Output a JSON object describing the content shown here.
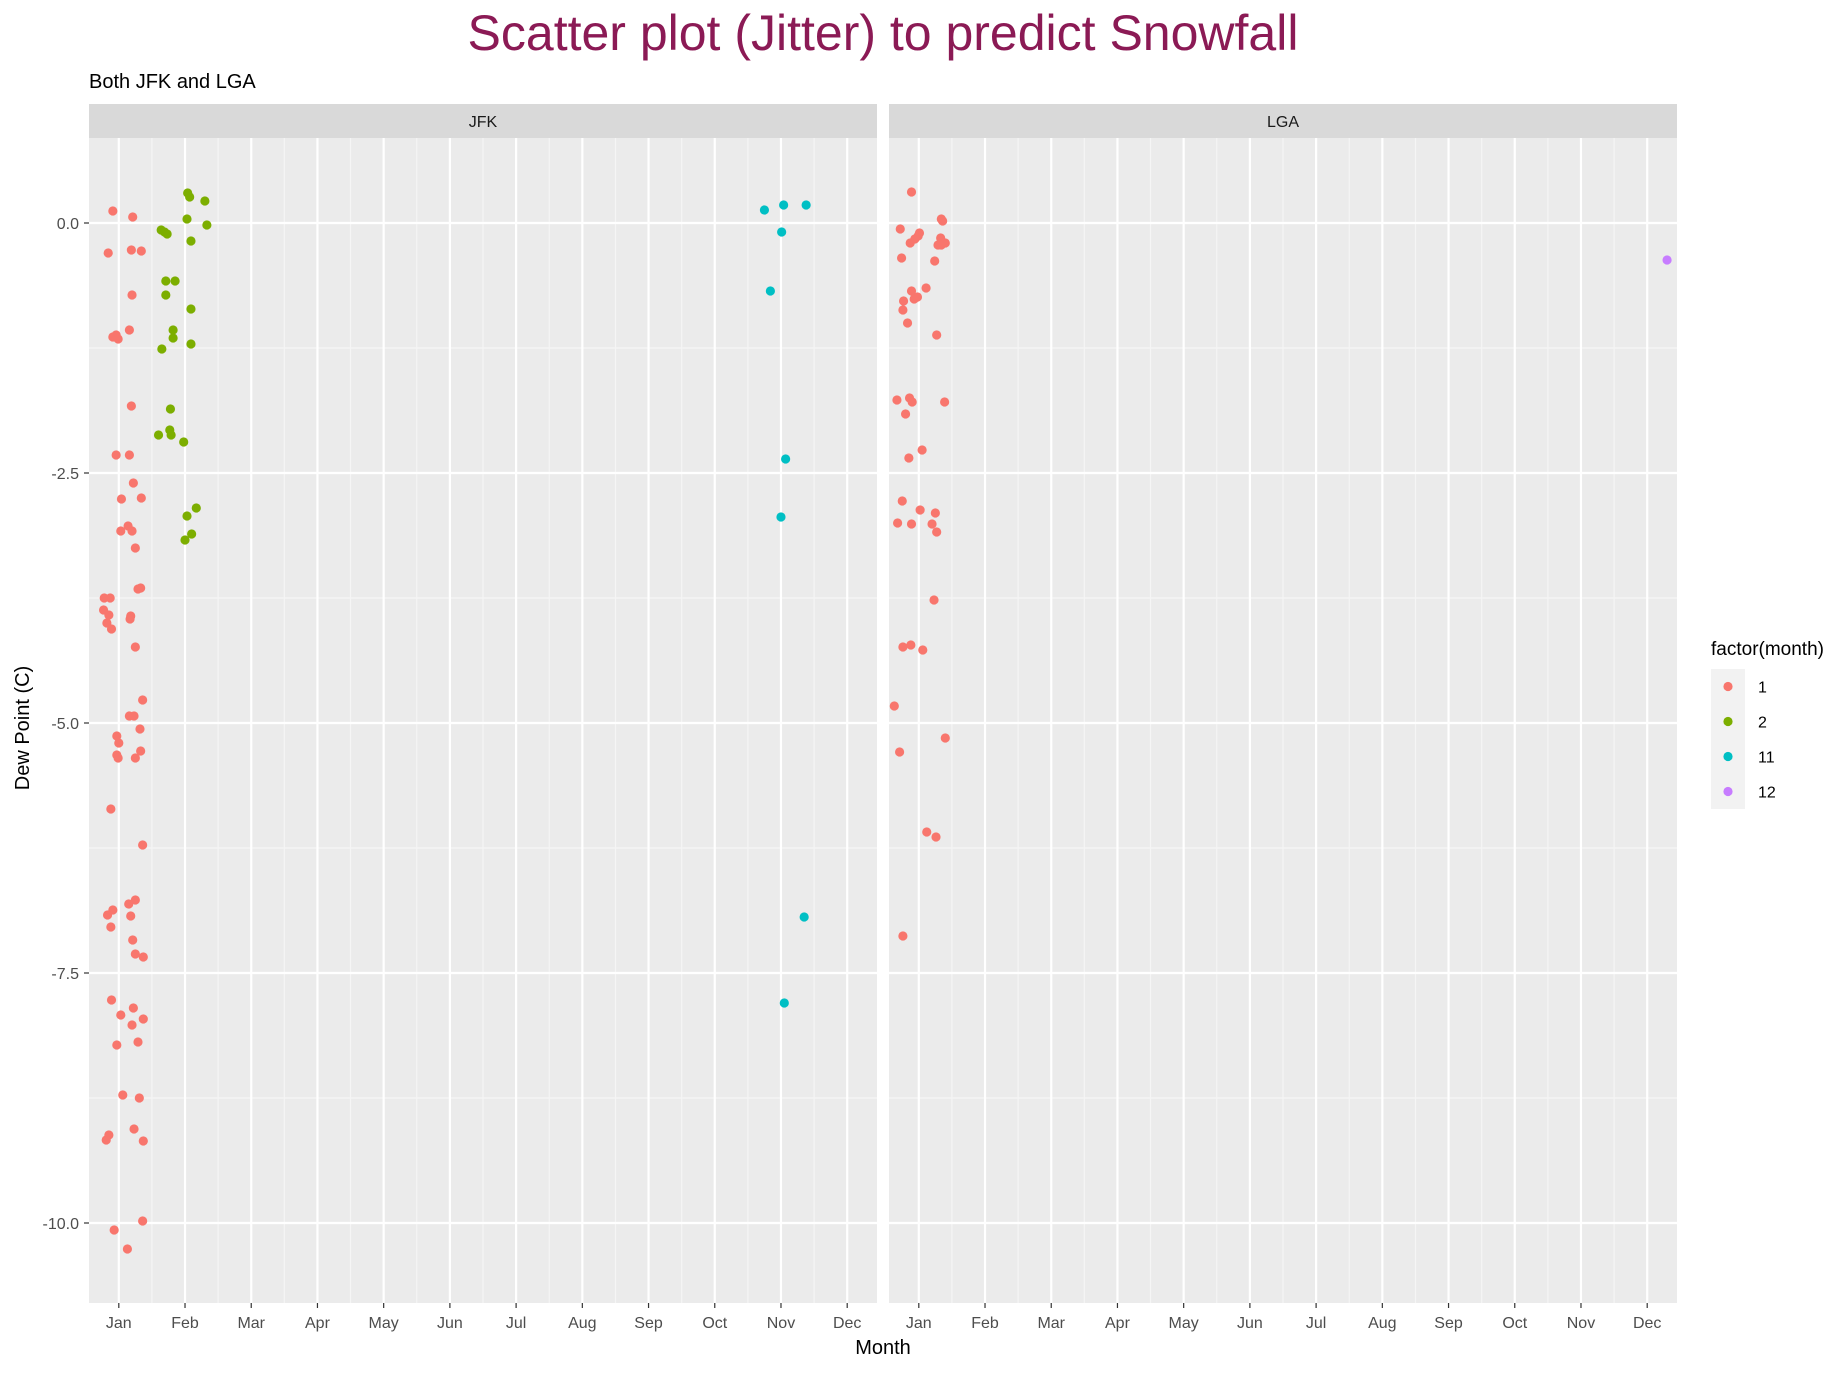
{
  "chart_data": {
    "type": "scatter",
    "title": "Scatter plot (Jitter) to predict Snowfall",
    "subtitle": "Both JFK and LGA",
    "xlabel": "Month",
    "ylabel": "Dew Point (C)",
    "x_ticks": [
      "Jan",
      "Feb",
      "Mar",
      "Apr",
      "May",
      "Jun",
      "Jul",
      "Aug",
      "Sep",
      "Oct",
      "Nov",
      "Dec"
    ],
    "y_ticks": [
      0.0,
      -2.5,
      -5.0,
      -7.5,
      -10.0
    ],
    "y_tick_labels": [
      "0.0",
      "-2.5",
      "-5.0",
      "-7.5",
      "-10.0"
    ],
    "xlim": [
      0.55,
      12.45
    ],
    "ylim": [
      -10.8,
      0.85
    ],
    "grid": true,
    "legend": {
      "title": "factor(month)",
      "placement": "right",
      "entries": [
        {
          "label": "1",
          "color": "#F8766D"
        },
        {
          "label": "2",
          "color": "#7CAE00"
        },
        {
          "label": "11",
          "color": "#00BFC4"
        },
        {
          "label": "12",
          "color": "#C77CFF"
        }
      ]
    },
    "colors": {
      "title": "#8B1A55",
      "panel_bg": "#EBEBEB",
      "strip_bg": "#D9D9D9",
      "grid": "#FFFFFF"
    },
    "panels": [
      {
        "label": "JFK",
        "series": [
          {
            "name": "1",
            "color": "#F8766D",
            "points": [
              [
                0.91,
                0.12
              ],
              [
                1.21,
                0.06
              ],
              [
                0.84,
                -0.3
              ],
              [
                1.19,
                -0.27
              ],
              [
                1.34,
                -0.28
              ],
              [
                1.2,
                -0.72
              ],
              [
                0.91,
                -1.14
              ],
              [
                0.96,
                -1.12
              ],
              [
                0.99,
                -1.16
              ],
              [
                1.16,
                -1.07
              ],
              [
                1.19,
                -1.83
              ],
              [
                0.96,
                -2.32
              ],
              [
                1.16,
                -2.32
              ],
              [
                1.22,
                -2.6
              ],
              [
                1.04,
                -2.76
              ],
              [
                1.34,
                -2.75
              ],
              [
                1.03,
                -3.08
              ],
              [
                1.14,
                -3.03
              ],
              [
                1.2,
                -3.08
              ],
              [
                1.25,
                -3.25
              ],
              [
                1.29,
                -3.66
              ],
              [
                1.33,
                -3.65
              ],
              [
                0.78,
                -3.75
              ],
              [
                0.87,
                -3.75
              ],
              [
                0.77,
                -3.87
              ],
              [
                0.85,
                -3.92
              ],
              [
                0.82,
                -4.0
              ],
              [
                0.89,
                -4.06
              ],
              [
                1.18,
                -3.93
              ],
              [
                1.17,
                -3.96
              ],
              [
                1.25,
                -4.24
              ],
              [
                1.36,
                -4.77
              ],
              [
                1.16,
                -4.93
              ],
              [
                1.23,
                -4.93
              ],
              [
                1.32,
                -5.06
              ],
              [
                0.97,
                -5.13
              ],
              [
                1.0,
                -5.2
              ],
              [
                1.33,
                -5.28
              ],
              [
                0.97,
                -5.32
              ],
              [
                0.99,
                -5.35
              ],
              [
                1.25,
                -5.35
              ],
              [
                0.88,
                -5.86
              ],
              [
                1.36,
                -6.22
              ],
              [
                1.25,
                -6.77
              ],
              [
                1.15,
                -6.81
              ],
              [
                0.91,
                -6.87
              ],
              [
                0.83,
                -6.92
              ],
              [
                1.18,
                -6.93
              ],
              [
                0.88,
                -7.04
              ],
              [
                1.21,
                -7.17
              ],
              [
                1.25,
                -7.31
              ],
              [
                1.37,
                -7.34
              ],
              [
                0.89,
                -7.77
              ],
              [
                1.22,
                -7.85
              ],
              [
                1.03,
                -7.92
              ],
              [
                1.37,
                -7.96
              ],
              [
                1.2,
                -8.02
              ],
              [
                1.29,
                -8.19
              ],
              [
                0.97,
                -8.22
              ],
              [
                1.06,
                -8.72
              ],
              [
                1.31,
                -8.75
              ],
              [
                1.23,
                -9.06
              ],
              [
                0.85,
                -9.12
              ],
              [
                0.81,
                -9.17
              ],
              [
                1.37,
                -9.18
              ],
              [
                1.36,
                -9.98
              ],
              [
                0.93,
                -10.07
              ],
              [
                1.13,
                -10.26
              ]
            ]
          },
          {
            "name": "2",
            "color": "#7CAE00",
            "points": [
              [
                2.04,
                0.3
              ],
              [
                2.07,
                0.26
              ],
              [
                2.3,
                0.22
              ],
              [
                2.03,
                0.04
              ],
              [
                2.33,
                -0.02
              ],
              [
                1.64,
                -0.07
              ],
              [
                1.69,
                -0.09
              ],
              [
                1.73,
                -0.11
              ],
              [
                2.09,
                -0.18
              ],
              [
                1.71,
                -0.58
              ],
              [
                1.85,
                -0.58
              ],
              [
                1.71,
                -0.72
              ],
              [
                2.09,
                -0.86
              ],
              [
                1.82,
                -1.07
              ],
              [
                1.82,
                -1.15
              ],
              [
                2.09,
                -1.21
              ],
              [
                1.65,
                -1.26
              ],
              [
                1.78,
                -1.86
              ],
              [
                1.77,
                -2.07
              ],
              [
                1.79,
                -2.12
              ],
              [
                1.6,
                -2.12
              ],
              [
                1.98,
                -2.19
              ],
              [
                2.17,
                -2.85
              ],
              [
                2.03,
                -2.93
              ],
              [
                2.1,
                -3.11
              ],
              [
                2.0,
                -3.17
              ]
            ]
          },
          {
            "name": "11",
            "color": "#00BFC4",
            "points": [
              [
                10.75,
                0.13
              ],
              [
                11.04,
                0.18
              ],
              [
                11.38,
                0.18
              ],
              [
                11.01,
                -0.09
              ],
              [
                10.84,
                -0.68
              ],
              [
                11.07,
                -2.36
              ],
              [
                11.0,
                -2.94
              ],
              [
                11.35,
                -6.94
              ],
              [
                11.05,
                -7.8
              ]
            ]
          }
        ]
      },
      {
        "label": "LGA",
        "series": [
          {
            "name": "1",
            "color": "#F8766D",
            "points": [
              [
                0.89,
                0.31
              ],
              [
                1.34,
                0.04
              ],
              [
                1.36,
                0.02
              ],
              [
                0.72,
                -0.06
              ],
              [
                1.01,
                -0.1
              ],
              [
                0.99,
                -0.13
              ],
              [
                0.94,
                -0.16
              ],
              [
                1.33,
                -0.15
              ],
              [
                0.87,
                -0.2
              ],
              [
                1.4,
                -0.2
              ],
              [
                1.29,
                -0.22
              ],
              [
                1.34,
                -0.22
              ],
              [
                0.74,
                -0.35
              ],
              [
                1.24,
                -0.38
              ],
              [
                1.11,
                -0.65
              ],
              [
                0.89,
                -0.68
              ],
              [
                0.98,
                -0.74
              ],
              [
                0.93,
                -0.76
              ],
              [
                0.77,
                -0.78
              ],
              [
                0.76,
                -0.87
              ],
              [
                0.83,
                -1.0
              ],
              [
                1.27,
                -1.12
              ],
              [
                0.67,
                -1.77
              ],
              [
                0.86,
                -1.75
              ],
              [
                0.9,
                -1.79
              ],
              [
                1.39,
                -1.79
              ],
              [
                0.8,
                -1.91
              ],
              [
                1.05,
                -2.27
              ],
              [
                0.85,
                -2.35
              ],
              [
                0.75,
                -2.78
              ],
              [
                1.02,
                -2.87
              ],
              [
                1.25,
                -2.9
              ],
              [
                0.68,
                -3.0
              ],
              [
                0.89,
                -3.01
              ],
              [
                1.2,
                -3.01
              ],
              [
                1.27,
                -3.09
              ],
              [
                1.23,
                -3.77
              ],
              [
                0.88,
                -4.22
              ],
              [
                0.76,
                -4.24
              ],
              [
                1.06,
                -4.27
              ],
              [
                0.63,
                -4.83
              ],
              [
                1.4,
                -5.15
              ],
              [
                0.71,
                -5.29
              ],
              [
                1.12,
                -6.09
              ],
              [
                1.26,
                -6.14
              ],
              [
                0.76,
                -7.13
              ]
            ]
          },
          {
            "name": "12",
            "color": "#C77CFF",
            "points": [
              [
                12.3,
                -0.37
              ]
            ]
          }
        ]
      }
    ]
  }
}
